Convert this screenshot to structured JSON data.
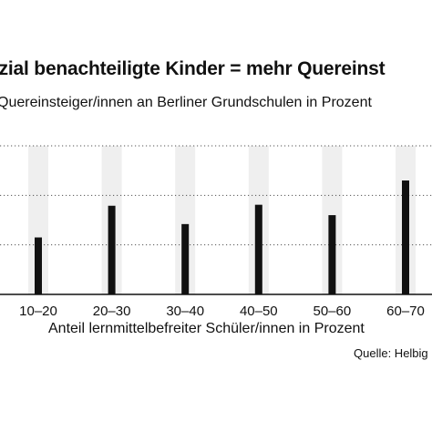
{
  "chart_data": {
    "type": "bar",
    "title": "ozial benachteiligte Kinder = mehr Quereinst",
    "subtitle": "Quereinsteiger/innen an Berliner Grundschulen in Prozent",
    "xlabel": "Anteil lernmittelbefreiter Schüler/innen in Prozent",
    "ylabel": "",
    "source": "Quelle: Helbig",
    "categories": [
      "10–20",
      "20–30",
      "30–40",
      "40–50",
      "50–60",
      "60–70"
    ],
    "values": [
      11.5,
      17.9,
      14.2,
      18.1,
      16.0,
      23.0
    ],
    "ylim": [
      0,
      30
    ],
    "grid": true,
    "bar_color": "#111111",
    "band_color": "#efefef"
  }
}
